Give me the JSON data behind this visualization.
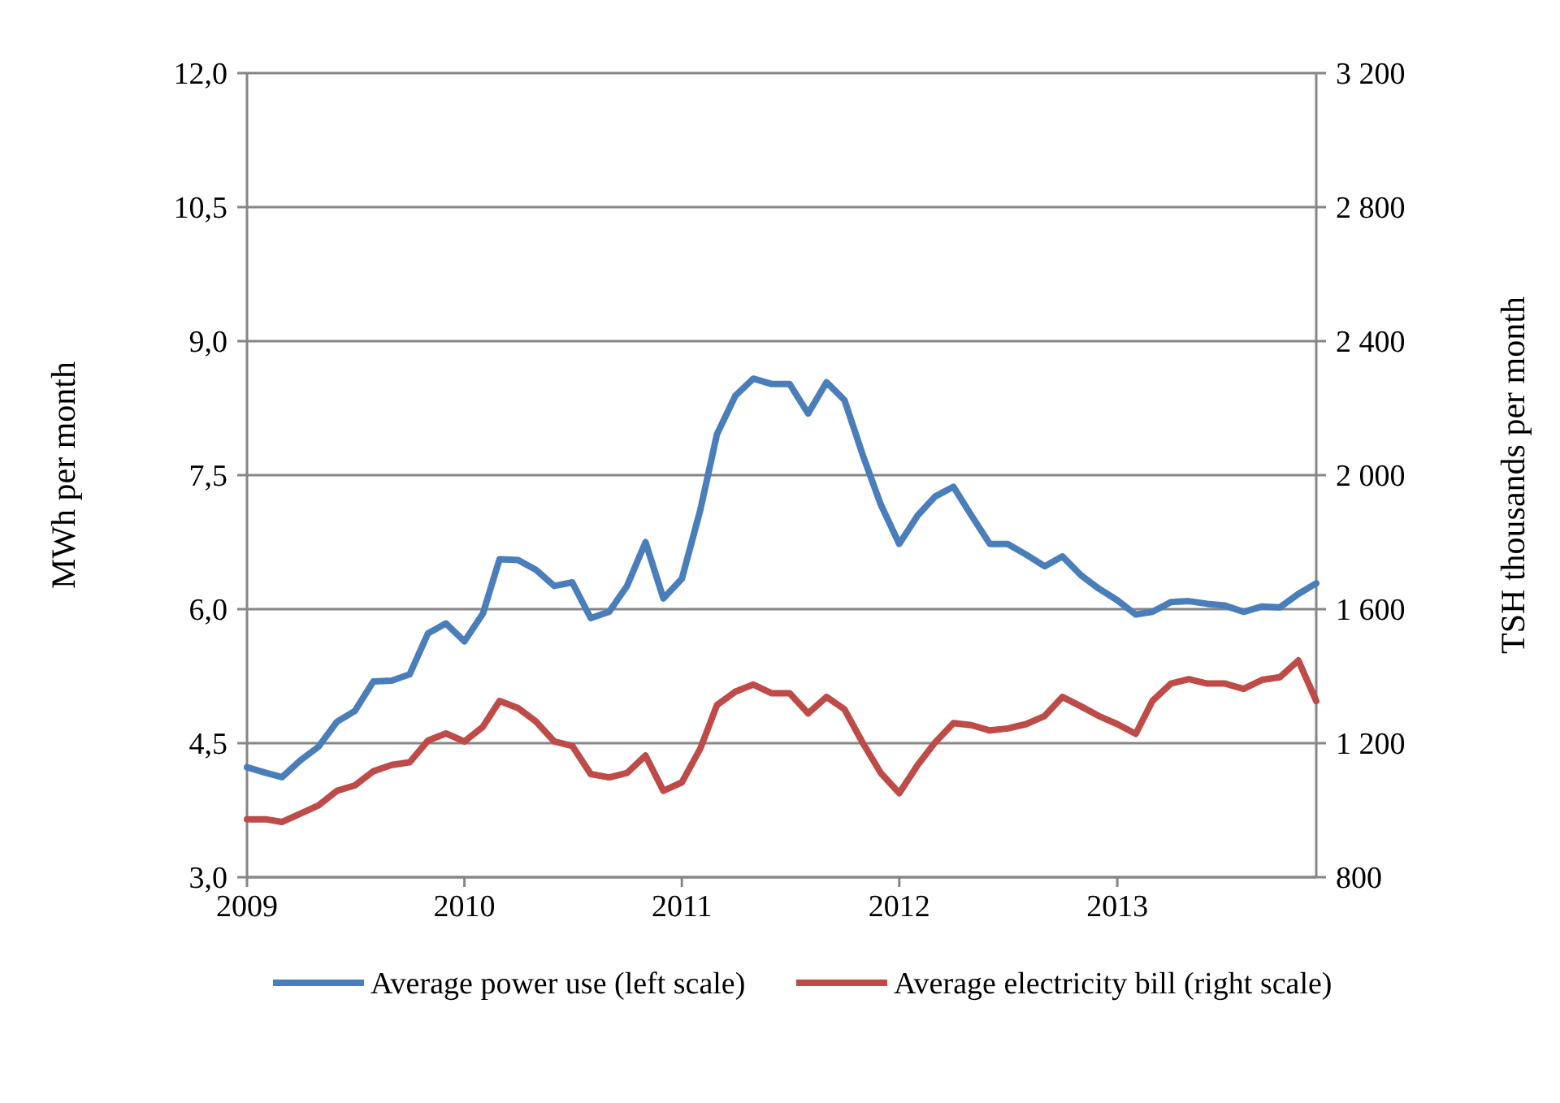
{
  "chart_data": {
    "type": "line",
    "ylabel": "MWh per month",
    "y2label": "TSH thousands per month",
    "x": [
      "2009-01",
      "2009-02",
      "2009-03",
      "2009-04",
      "2009-05",
      "2009-06",
      "2009-07",
      "2009-08",
      "2009-09",
      "2009-10",
      "2009-11",
      "2009-12",
      "2010-01",
      "2010-02",
      "2010-03",
      "2010-04",
      "2010-05",
      "2010-06",
      "2010-07",
      "2010-08",
      "2010-09",
      "2010-10",
      "2010-11",
      "2010-12",
      "2011-01",
      "2011-02",
      "2011-03",
      "2011-04",
      "2011-05",
      "2011-06",
      "2011-07",
      "2011-08",
      "2011-09",
      "2011-10",
      "2011-11",
      "2011-12",
      "2012-01",
      "2012-02",
      "2012-03",
      "2012-04",
      "2012-05",
      "2012-06",
      "2012-07",
      "2012-08",
      "2012-09",
      "2012-10",
      "2012-11",
      "2012-12",
      "2013-01",
      "2013-02",
      "2013-03",
      "2013-04",
      "2013-05",
      "2013-06",
      "2013-07",
      "2013-08",
      "2013-09",
      "2013-10",
      "2013-11",
      "2013-12"
    ],
    "series": [
      {
        "name": "Average power use (left scale)",
        "color": "#4a7ebb",
        "values": [
          4.23,
          4.17,
          4.12,
          4.31,
          4.46,
          4.74,
          4.86,
          5.19,
          5.2,
          5.27,
          5.73,
          5.84,
          5.64,
          5.95,
          6.56,
          6.55,
          6.44,
          6.26,
          6.3,
          5.9,
          5.97,
          6.26,
          6.75,
          6.12,
          6.34,
          7.11,
          7.96,
          8.39,
          8.58,
          8.52,
          8.52,
          8.19,
          8.54,
          8.34,
          7.72,
          7.17,
          6.73,
          7.05,
          7.26,
          7.37,
          7.05,
          6.73,
          6.73,
          6.61,
          6.48,
          6.59,
          6.38,
          6.23,
          6.1,
          5.94,
          5.97,
          6.08,
          6.09,
          6.06,
          6.04,
          5.97,
          6.03,
          6.02,
          6.17,
          6.29
        ]
      },
      {
        "name": "Average electricity bill (right scale)",
        "color": "#be4b48",
        "axis": "y2",
        "values": [
          973,
          973,
          965,
          990,
          1014,
          1058,
          1074,
          1116,
          1135,
          1143,
          1208,
          1229,
          1205,
          1249,
          1326,
          1305,
          1265,
          1205,
          1192,
          1108,
          1098,
          1111,
          1163,
          1058,
          1083,
          1184,
          1314,
          1354,
          1375,
          1349,
          1349,
          1289,
          1338,
          1301,
          1200,
          1111,
          1051,
          1135,
          1202,
          1260,
          1254,
          1238,
          1244,
          1257,
          1281,
          1338,
          1310,
          1281,
          1257,
          1228,
          1326,
          1378,
          1391,
          1378,
          1378,
          1362,
          1389,
          1397,
          1447,
          1326
        ]
      }
    ],
    "xlim": [
      "2009-01",
      "2013-12"
    ],
    "xticks": [
      "2009",
      "2010",
      "2011",
      "2012",
      "2013"
    ],
    "ylim": [
      3,
      12
    ],
    "yticks": [
      {
        "value": 3,
        "label": "3,0"
      },
      {
        "value": 4.5,
        "label": "4,5"
      },
      {
        "value": 6,
        "label": "6,0"
      },
      {
        "value": 7.5,
        "label": "7,5"
      },
      {
        "value": 9,
        "label": "9,0"
      },
      {
        "value": 10.5,
        "label": "10,5"
      },
      {
        "value": 12,
        "label": "12,0"
      }
    ],
    "y2lim": [
      800,
      3200
    ],
    "y2ticks": [
      800,
      {
        "value": 1200,
        "label": "1 200"
      },
      {
        "value": 1600,
        "label": "1 600"
      },
      {
        "value": 2000,
        "label": "2 000"
      },
      {
        "value": 2400,
        "label": "2 400"
      },
      {
        "value": 2800,
        "label": "2 800"
      },
      {
        "value": 3200,
        "label": "3 200"
      }
    ],
    "grid": "y",
    "legend": "bottom",
    "marker": "none",
    "line_style": "solid"
  }
}
